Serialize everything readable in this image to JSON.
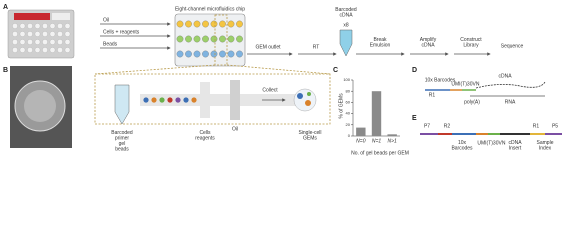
{
  "panel_labels": [
    "A",
    "B",
    "C",
    "D",
    "E"
  ],
  "panel_a": {
    "inputs": [
      "Oil",
      "Cells + reagents",
      "Beads"
    ],
    "chip_title": "Eight-channel microfluidics chip",
    "outlet": "GEM outlet",
    "steps": [
      "RT",
      "Break Emulsion",
      "Amplify cDNA",
      "Construct Library",
      "Sequence"
    ],
    "tube_label": "Barcoded cDNA",
    "tube_count": "x8"
  },
  "panel_b": {
    "beads_label": "Barcoded primer gel beads",
    "cells_label": "Cells reagents",
    "oil_label": "Oil",
    "collect": "Collect",
    "gems_label": "Single-cell GEMs"
  },
  "chart_data": {
    "type": "bar",
    "y_label": "% of GEMs",
    "x_label": "No. of gel beads per GEM",
    "categories": [
      "N=0",
      "N=1",
      "N>1"
    ],
    "values": [
      15,
      80,
      3
    ],
    "color": "#8a8a8a",
    "ylim": [
      0,
      100
    ],
    "yticks": [
      0,
      20,
      40,
      60,
      80,
      100
    ]
  },
  "panel_d": {
    "barcodes": "10x Barcodes",
    "umi": "UMI",
    "polyt": "(T)30VN",
    "cdna": "cDNA",
    "r1": "R1",
    "polya": "poly(A)",
    "rna": "RNA"
  },
  "panel_e": {
    "p7": "P7",
    "r2": "R2",
    "r1": "R1",
    "p5": "P5",
    "barcodes": "10x Barcodes",
    "umi": "UMI",
    "polyt": "(T)30VN",
    "insert": "cDNA Insert",
    "sample_index": "Sample Index"
  }
}
